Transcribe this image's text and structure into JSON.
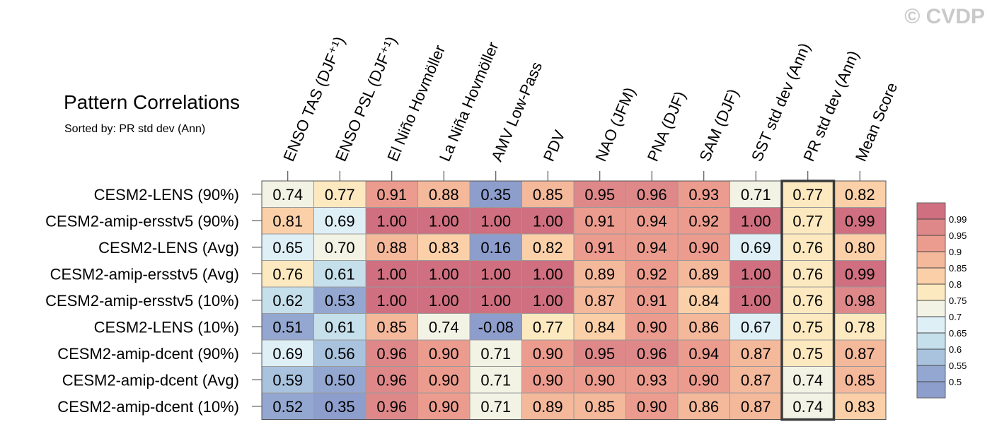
{
  "watermark": "© CVDP",
  "chart_data": {
    "type": "heatmap",
    "title": "Pattern Correlations",
    "subtitle": "Sorted by: PR std dev (Ann)",
    "columns": [
      "ENSO TAS (DJF⁺¹)",
      "ENSO PSL (DJF⁺¹)",
      "El Niño Hovmöller",
      "La Niña Hovmöller",
      "AMV Low-Pass",
      "PDV",
      "NAO (JFM)",
      "PNA (DJF)",
      "SAM (DJF)",
      "SST std dev (Ann)",
      "PR std dev (Ann)",
      "Mean Score"
    ],
    "rows": [
      "CESM2-LENS (90%)",
      "CESM2-amip-ersstv5 (90%)",
      "CESM2-LENS (Avg)",
      "CESM2-amip-ersstv5 (Avg)",
      "CESM2-amip-ersstv5 (10%)",
      "CESM2-LENS (10%)",
      "CESM2-amip-dcent (90%)",
      "CESM2-amip-dcent (Avg)",
      "CESM2-amip-dcent (10%)"
    ],
    "values": [
      [
        "0.74",
        "0.77",
        "0.91",
        "0.88",
        "0.35",
        "0.85",
        "0.95",
        "0.96",
        "0.93",
        "0.71",
        "0.77",
        "0.82"
      ],
      [
        "0.81",
        "0.69",
        "1.00",
        "1.00",
        "1.00",
        "1.00",
        "0.91",
        "0.94",
        "0.92",
        "1.00",
        "0.77",
        "0.99"
      ],
      [
        "0.65",
        "0.70",
        "0.88",
        "0.83",
        "0.16",
        "0.82",
        "0.91",
        "0.94",
        "0.90",
        "0.69",
        "0.76",
        "0.80"
      ],
      [
        "0.76",
        "0.61",
        "1.00",
        "1.00",
        "1.00",
        "1.00",
        "0.89",
        "0.92",
        "0.89",
        "1.00",
        "0.76",
        "0.99"
      ],
      [
        "0.62",
        "0.53",
        "1.00",
        "1.00",
        "1.00",
        "1.00",
        "0.87",
        "0.91",
        "0.84",
        "1.00",
        "0.76",
        "0.98"
      ],
      [
        "0.51",
        "0.61",
        "0.85",
        "0.74",
        "-0.08",
        "0.77",
        "0.84",
        "0.90",
        "0.86",
        "0.67",
        "0.75",
        "0.78"
      ],
      [
        "0.69",
        "0.56",
        "0.96",
        "0.90",
        "0.71",
        "0.90",
        "0.95",
        "0.96",
        "0.94",
        "0.87",
        "0.75",
        "0.87"
      ],
      [
        "0.59",
        "0.50",
        "0.96",
        "0.90",
        "0.71",
        "0.90",
        "0.90",
        "0.93",
        "0.90",
        "0.87",
        "0.74",
        "0.85"
      ],
      [
        "0.52",
        "0.35",
        "0.96",
        "0.90",
        "0.71",
        "0.89",
        "0.85",
        "0.90",
        "0.86",
        "0.87",
        "0.74",
        "0.83"
      ]
    ],
    "highlighted_column": "PR std dev (Ann)",
    "colorbar": {
      "labels": [
        "0.99",
        "0.95",
        "0.9",
        "0.85",
        "0.8",
        "0.75",
        "0.7",
        "0.65",
        "0.6",
        "0.55",
        "0.5"
      ],
      "colors": [
        "#cf6f80",
        "#de8889",
        "#eb9c8e",
        "#f4b89b",
        "#fbd0a8",
        "#fde9c0",
        "#f3f3e5",
        "#deeff6",
        "#c5dfeb",
        "#a9c3de",
        "#93a7d1",
        "#8d9dcc"
      ]
    },
    "legend": "right"
  }
}
